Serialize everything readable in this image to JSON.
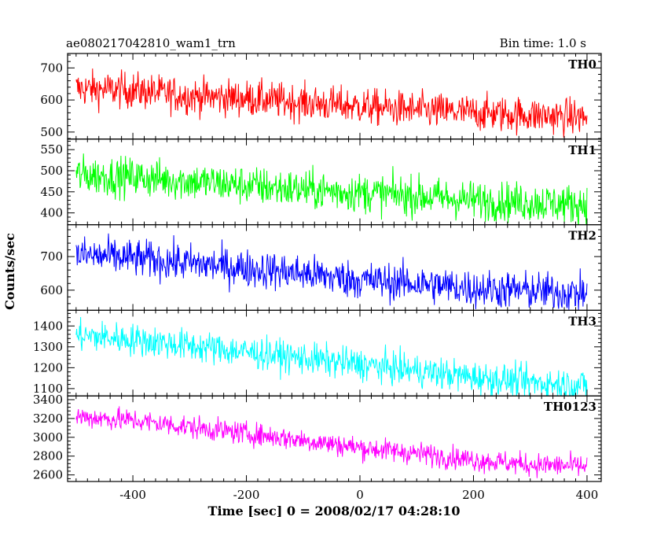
{
  "chart_data": {
    "type": "line",
    "title": "ae080217042810_wam1_trn",
    "bin_time_label": "Bin time: 1.0 s",
    "xlabel": "Time [sec] 0 = 2008/02/17 04:28:10",
    "ylabel": "Counts/sec",
    "xlim": [
      -515,
      425
    ],
    "xticks": [
      -400,
      -200,
      0,
      200,
      400
    ],
    "x_range": [
      -500,
      400
    ],
    "grid": false,
    "panels": [
      {
        "name": "TH0",
        "color": "#ff0000",
        "ylim": [
          478,
          745
        ],
        "yticks": [
          500,
          600,
          700
        ],
        "trend": [
          [
            -500,
            635
          ],
          [
            -400,
            630
          ],
          [
            -300,
            612
          ],
          [
            -200,
            605
          ],
          [
            -100,
            592
          ],
          [
            0,
            580
          ],
          [
            100,
            568
          ],
          [
            200,
            560
          ],
          [
            300,
            553
          ],
          [
            400,
            545
          ]
        ],
        "noise": 28
      },
      {
        "name": "TH1",
        "color": "#00ff00",
        "ylim": [
          372,
          575
        ],
        "yticks": [
          400,
          450,
          500,
          550
        ],
        "trend": [
          [
            -500,
            490
          ],
          [
            -400,
            485
          ],
          [
            -300,
            475
          ],
          [
            -200,
            465
          ],
          [
            -100,
            455
          ],
          [
            0,
            448
          ],
          [
            100,
            440
          ],
          [
            200,
            430
          ],
          [
            300,
            425
          ],
          [
            400,
            420
          ]
        ],
        "noise": 23
      },
      {
        "name": "TH2",
        "color": "#0000ff",
        "ylim": [
          540,
          795
        ],
        "yticks": [
          600,
          700
        ],
        "trend": [
          [
            -500,
            705
          ],
          [
            -400,
            695
          ],
          [
            -300,
            680
          ],
          [
            -200,
            665
          ],
          [
            -100,
            650
          ],
          [
            0,
            630
          ],
          [
            100,
            620
          ],
          [
            200,
            605
          ],
          [
            300,
            598
          ],
          [
            400,
            590
          ]
        ],
        "noise": 28
      },
      {
        "name": "TH3",
        "color": "#00ffff",
        "ylim": [
          1065,
          1475
        ],
        "yticks": [
          1100,
          1200,
          1300,
          1400
        ],
        "trend": [
          [
            -500,
            1355
          ],
          [
            -400,
            1335
          ],
          [
            -300,
            1305
          ],
          [
            -200,
            1275
          ],
          [
            -100,
            1245
          ],
          [
            0,
            1215
          ],
          [
            100,
            1185
          ],
          [
            200,
            1155
          ],
          [
            300,
            1130
          ],
          [
            400,
            1115
          ]
        ],
        "noise": 38
      },
      {
        "name": "TH0123",
        "color": "#ff00ff",
        "ylim": [
          2530,
          3440
        ],
        "yticks": [
          2600,
          2800,
          3000,
          3200,
          3400
        ],
        "trend": [
          [
            -500,
            3220
          ],
          [
            -400,
            3180
          ],
          [
            -300,
            3110
          ],
          [
            -200,
            3040
          ],
          [
            -100,
            2970
          ],
          [
            0,
            2890
          ],
          [
            100,
            2830
          ],
          [
            200,
            2760
          ],
          [
            300,
            2710
          ],
          [
            400,
            2690
          ]
        ],
        "noise": 60
      }
    ]
  }
}
